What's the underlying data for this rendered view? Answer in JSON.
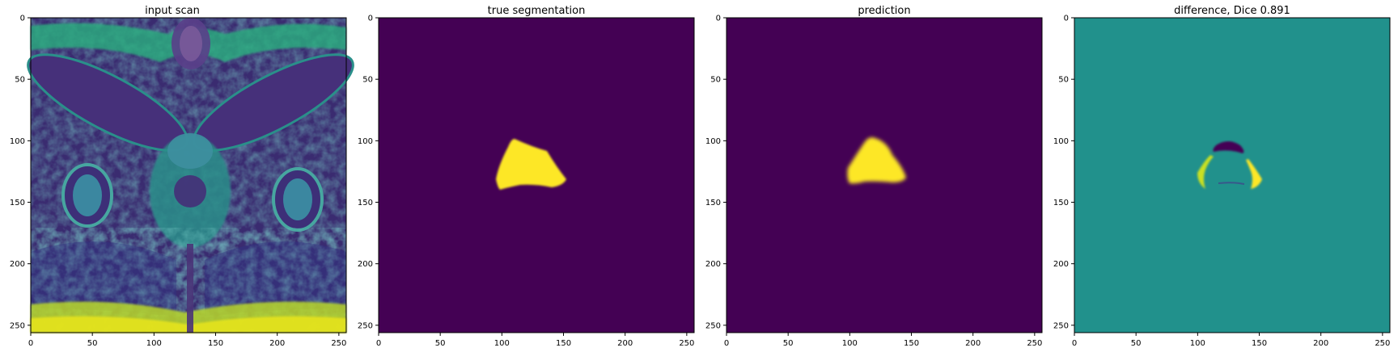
{
  "figure": {
    "panels": [
      {
        "id": "input-scan",
        "title": "input scan"
      },
      {
        "id": "true-segmentation",
        "title": "true segmentation"
      },
      {
        "id": "prediction",
        "title": "prediction"
      },
      {
        "id": "difference",
        "title": "difference, Dice 0.891"
      }
    ],
    "axis": {
      "x_ticks": [
        "0",
        "50",
        "100",
        "150",
        "200",
        "250"
      ],
      "y_ticks": [
        "0",
        "50",
        "100",
        "150",
        "200",
        "250"
      ],
      "xlim": [
        0,
        256
      ],
      "ylim": [
        256,
        0
      ]
    },
    "colors": {
      "background": "#440154",
      "foreground": "#fde725",
      "difference_mid": "#21918c",
      "scan_dark": "#3b2a6e",
      "scan_mid": "#2a8f8a",
      "scan_bright": "#d2e21b"
    }
  }
}
